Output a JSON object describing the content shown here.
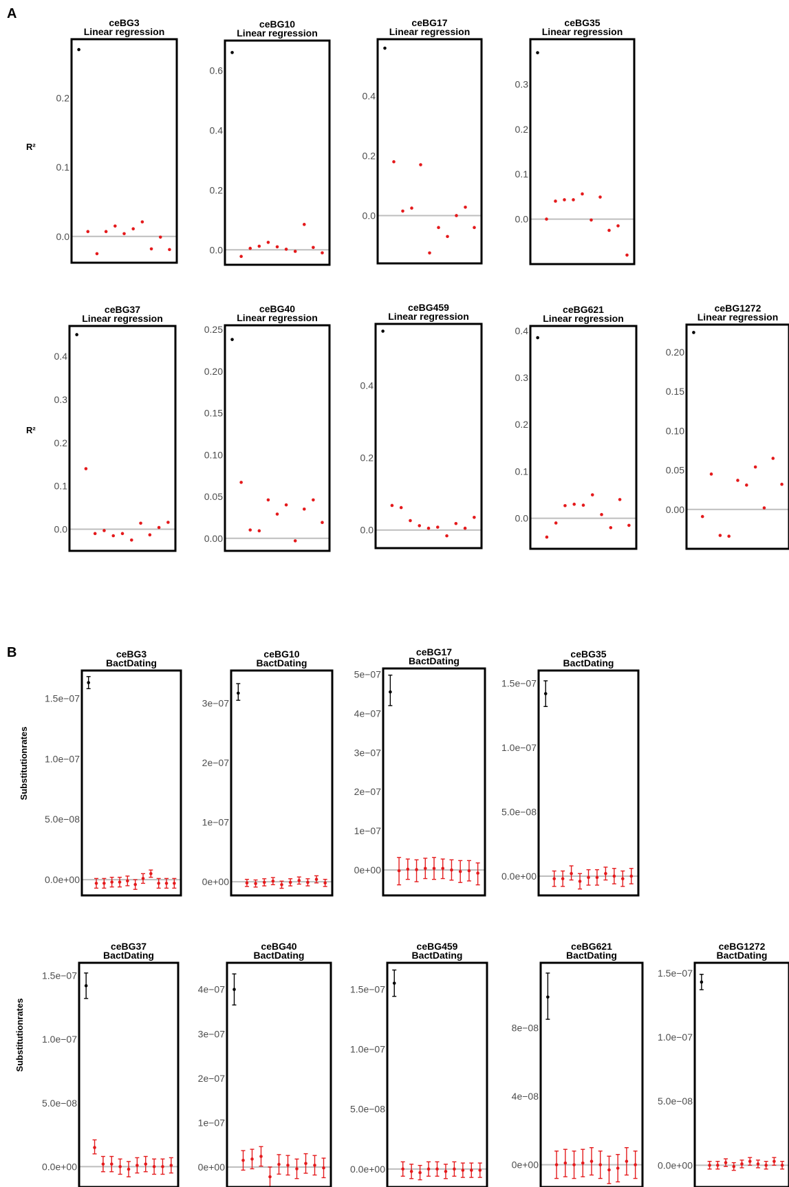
{
  "panel_labels": [
    "A",
    "B"
  ],
  "y_labels": {
    "a_row1": "R²",
    "a_row2": "R²",
    "b_row1": "Substitutionrates",
    "b_row2": "Substitutionrates"
  },
  "colors": {
    "reference": "#000000",
    "permuted": "#e41a1c",
    "zero_line": "#bdbdbd",
    "frame": "#000000",
    "tick_text": "#4d4d4d"
  },
  "chart_data": [
    {
      "type": "scatter",
      "panel": "A",
      "name": "ceBG3",
      "method": "Linear regression",
      "ylim": [
        -0.038,
        0.285
      ],
      "ticks": [
        0.0,
        0.1,
        0.2
      ],
      "tick_labels": [
        "0.0",
        "0.1",
        "0.2"
      ],
      "reference": 0.27,
      "values": [
        0.007,
        -0.025,
        0.007,
        0.015,
        0.004,
        0.011,
        0.021,
        -0.018,
        -0.001,
        -0.019
      ]
    },
    {
      "type": "scatter",
      "panel": "A",
      "name": "ceBG10",
      "method": "Linear regression",
      "ylim": [
        -0.05,
        0.7
      ],
      "ticks": [
        0.0,
        0.2,
        0.4,
        0.6
      ],
      "tick_labels": [
        "0.0",
        "0.2",
        "0.4",
        "0.6"
      ],
      "reference": 0.66,
      "values": [
        -0.022,
        0.005,
        0.012,
        0.025,
        0.01,
        0.002,
        -0.005,
        0.085,
        0.008,
        -0.01
      ]
    },
    {
      "type": "scatter",
      "panel": "A",
      "name": "ceBG17",
      "method": "Linear regression",
      "ylim": [
        -0.16,
        0.59
      ],
      "ticks": [
        0.0,
        0.2,
        0.4
      ],
      "tick_labels": [
        "0.0",
        "0.2",
        "0.4"
      ],
      "reference": 0.56,
      "values": [
        0.18,
        0.015,
        0.025,
        0.17,
        -0.125,
        -0.04,
        -0.07,
        0.0,
        0.028,
        -0.04
      ]
    },
    {
      "type": "scatter",
      "panel": "A",
      "name": "ceBG35",
      "method": "Linear regression",
      "ylim": [
        -0.1,
        0.4
      ],
      "ticks": [
        0.0,
        0.1,
        0.2,
        0.3
      ],
      "tick_labels": [
        "0.0",
        "0.1",
        "0.2",
        "0.3"
      ],
      "reference": 0.37,
      "values": [
        0.0,
        0.04,
        0.043,
        0.043,
        0.056,
        -0.002,
        0.049,
        -0.025,
        -0.015,
        -0.08
      ]
    },
    {
      "type": "scatter",
      "panel": "A",
      "name": "ceBG37",
      "method": "Linear regression",
      "ylim": [
        -0.05,
        0.47
      ],
      "ticks": [
        0.0,
        0.1,
        0.2,
        0.3,
        0.4
      ],
      "tick_labels": [
        "0.0",
        "0.1",
        "0.2",
        "0.3",
        "0.4"
      ],
      "reference": 0.45,
      "values": [
        0.14,
        -0.01,
        -0.003,
        -0.015,
        -0.01,
        -0.025,
        0.014,
        -0.013,
        0.004,
        0.016
      ]
    },
    {
      "type": "scatter",
      "panel": "A",
      "name": "ceBG40",
      "method": "Linear regression",
      "ylim": [
        -0.015,
        0.255
      ],
      "ticks": [
        0.0,
        0.05,
        0.1,
        0.15,
        0.2,
        0.25
      ],
      "tick_labels": [
        "0.00",
        "0.05",
        "0.10",
        "0.15",
        "0.20",
        "0.25"
      ],
      "reference": 0.238,
      "values": [
        0.067,
        0.01,
        0.009,
        0.046,
        0.029,
        0.04,
        -0.003,
        0.035,
        0.046,
        0.019
      ]
    },
    {
      "type": "scatter",
      "panel": "A",
      "name": "ceBG459",
      "method": "Linear regression",
      "ylim": [
        -0.05,
        0.57
      ],
      "ticks": [
        0.0,
        0.2,
        0.4
      ],
      "tick_labels": [
        "0.0",
        "0.2",
        "0.4"
      ],
      "reference": 0.55,
      "values": [
        0.068,
        0.062,
        0.026,
        0.012,
        0.005,
        0.008,
        -0.016,
        0.018,
        0.005,
        0.035
      ]
    },
    {
      "type": "scatter",
      "panel": "A",
      "name": "ceBG621",
      "method": "Linear regression",
      "ylim": [
        -0.065,
        0.41
      ],
      "ticks": [
        0.0,
        0.1,
        0.2,
        0.3,
        0.4
      ],
      "tick_labels": [
        "0.0",
        "0.1",
        "0.2",
        "0.3",
        "0.4"
      ],
      "reference": 0.385,
      "values": [
        -0.04,
        -0.01,
        0.027,
        0.03,
        0.028,
        0.05,
        0.008,
        -0.02,
        0.04,
        -0.015
      ]
    },
    {
      "type": "scatter",
      "panel": "A",
      "name": "ceBG1272",
      "method": "Linear regression",
      "ylim": [
        -0.05,
        0.235
      ],
      "ticks": [
        0.0,
        0.05,
        0.1,
        0.15,
        0.2
      ],
      "tick_labels": [
        "0.00",
        "0.05",
        "0.10",
        "0.15",
        "0.20"
      ],
      "reference": 0.225,
      "values": [
        -0.009,
        0.045,
        -0.033,
        -0.034,
        0.037,
        0.031,
        0.054,
        0.002,
        0.065,
        0.032
      ]
    },
    {
      "type": "errorbar",
      "panel": "B",
      "name": "ceBG3",
      "method": "BactDating",
      "ylim": [
        -1.3e-08,
        1.73e-07
      ],
      "ticks": [
        0,
        5e-08,
        1e-07,
        1.5e-07
      ],
      "tick_labels": [
        "0.0e+00",
        "5.0e−08",
        "1.0e−07",
        "1.5e−07"
      ],
      "reference": {
        "value": 1.63e-07,
        "lo": 1.58e-07,
        "hi": 1.68e-07
      },
      "values": [
        {
          "value": -3e-09,
          "lo": -7e-09,
          "hi": 1e-09
        },
        {
          "value": -3e-09,
          "lo": -7e-09,
          "hi": 1e-09
        },
        {
          "value": -2e-09,
          "lo": -6e-09,
          "hi": 2e-09
        },
        {
          "value": -2e-09,
          "lo": -6e-09,
          "hi": 2e-09
        },
        {
          "value": -1e-09,
          "lo": -5e-09,
          "hi": 3e-09
        },
        {
          "value": -4e-09,
          "lo": -8e-09,
          "hi": 0
        },
        {
          "value": 1e-09,
          "lo": -3e-09,
          "hi": 5e-09
        },
        {
          "value": 5e-09,
          "lo": 2e-09,
          "hi": 8e-09
        },
        {
          "value": -3e-09,
          "lo": -7e-09,
          "hi": 1e-09
        },
        {
          "value": -3e-09,
          "lo": -7e-09,
          "hi": 1e-09
        },
        {
          "value": -3e-09,
          "lo": -7e-09,
          "hi": 1e-09
        }
      ]
    },
    {
      "type": "errorbar",
      "panel": "B",
      "name": "ceBG10",
      "method": "BactDating",
      "ylim": [
        -2.3e-08,
        3.55e-07
      ],
      "ticks": [
        0,
        1e-07,
        2e-07,
        3e-07
      ],
      "tick_labels": [
        "0e+00",
        "1e−07",
        "2e−07",
        "3e−07"
      ],
      "reference": {
        "value": 3.17e-07,
        "lo": 3.05e-07,
        "hi": 3.33e-07
      },
      "values": [
        {
          "value": -2e-09,
          "lo": -8e-09,
          "hi": 4e-09
        },
        {
          "value": -3e-09,
          "lo": -9e-09,
          "hi": 3e-09
        },
        {
          "value": -1e-09,
          "lo": -7e-09,
          "hi": 5e-09
        },
        {
          "value": 1e-09,
          "lo": -5e-09,
          "hi": 7e-09
        },
        {
          "value": -5e-09,
          "lo": -1.1e-08,
          "hi": 1e-09
        },
        {
          "value": -1e-09,
          "lo": -7e-09,
          "hi": 5e-09
        },
        {
          "value": 2e-09,
          "lo": -4e-09,
          "hi": 8e-09
        },
        {
          "value": -1e-09,
          "lo": -7e-09,
          "hi": 5e-09
        },
        {
          "value": 4e-09,
          "lo": -2e-09,
          "hi": 1e-08
        },
        {
          "value": -2e-09,
          "lo": -8e-09,
          "hi": 4e-09
        }
      ]
    },
    {
      "type": "errorbar",
      "panel": "B",
      "name": "ceBG17",
      "method": "BactDating",
      "ylim": [
        -6.5e-08,
        5.15e-07
      ],
      "ticks": [
        0,
        1e-07,
        2e-07,
        3e-07,
        4e-07,
        5e-07
      ],
      "tick_labels": [
        "0e+00",
        "1e−07",
        "2e−07",
        "3e−07",
        "4e−07",
        "5e−07"
      ],
      "reference": {
        "value": 4.55e-07,
        "lo": 4.2e-07,
        "hi": 4.98e-07
      },
      "values": [
        {
          "value": -2e-09,
          "lo": -3.8e-08,
          "hi": 3.2e-08
        },
        {
          "value": 2e-09,
          "lo": -2.4e-08,
          "hi": 2.8e-08
        },
        {
          "value": 1e-09,
          "lo": -3e-08,
          "hi": 2.6e-08
        },
        {
          "value": 4e-09,
          "lo": -2.2e-08,
          "hi": 3e-08
        },
        {
          "value": 4e-09,
          "lo": -2.4e-08,
          "hi": 3.2e-08
        },
        {
          "value": 4e-09,
          "lo": -2.2e-08,
          "hi": 2.8e-08
        },
        {
          "value": 0,
          "lo": -2.6e-08,
          "hi": 2.6e-08
        },
        {
          "value": -4e-09,
          "lo": -3.2e-08,
          "hi": 2.4e-08
        },
        {
          "value": -2e-09,
          "lo": -2.8e-08,
          "hi": 2.4e-08
        },
        {
          "value": -8e-09,
          "lo": -3.8e-08,
          "hi": 1.8e-08
        }
      ]
    },
    {
      "type": "errorbar",
      "panel": "B",
      "name": "ceBG35",
      "method": "BactDating",
      "ylim": [
        -1.5e-08,
        1.6e-07
      ],
      "ticks": [
        0,
        5e-08,
        1e-07,
        1.5e-07
      ],
      "tick_labels": [
        "0.0e+00",
        "5.0e−08",
        "1.0e−07",
        "1.5e−07"
      ],
      "reference": {
        "value": 1.42e-07,
        "lo": 1.32e-07,
        "hi": 1.52e-07
      },
      "values": [
        {
          "value": -2e-09,
          "lo": -8e-09,
          "hi": 4e-09
        },
        {
          "value": -2e-09,
          "lo": -8e-09,
          "hi": 4e-09
        },
        {
          "value": 2e-09,
          "lo": -3e-09,
          "hi": 8e-09
        },
        {
          "value": -4e-09,
          "lo": -1e-08,
          "hi": 2e-09
        },
        {
          "value": -1e-09,
          "lo": -7e-09,
          "hi": 5e-09
        },
        {
          "value": -1e-09,
          "lo": -7e-09,
          "hi": 5e-09
        },
        {
          "value": 2e-09,
          "lo": -3e-09,
          "hi": 7e-09
        },
        {
          "value": 0,
          "lo": -6e-09,
          "hi": 6e-09
        },
        {
          "value": -2e-09,
          "lo": -8e-09,
          "hi": 4e-09
        },
        {
          "value": 0,
          "lo": -6e-09,
          "hi": 6e-09
        }
      ]
    },
    {
      "type": "errorbar",
      "panel": "B",
      "name": "ceBG37",
      "method": "BactDating",
      "ylim": [
        -1.6e-08,
        1.6e-07
      ],
      "ticks": [
        0,
        5e-08,
        1e-07,
        1.5e-07
      ],
      "tick_labels": [
        "0.0e+00",
        "5.0e−08",
        "1.0e−07",
        "1.5e−07"
      ],
      "reference": {
        "value": 1.42e-07,
        "lo": 1.32e-07,
        "hi": 1.52e-07
      },
      "values": [
        {
          "value": 1.5e-08,
          "lo": 1e-08,
          "hi": 2.1e-08
        },
        {
          "value": 2e-09,
          "lo": -4e-09,
          "hi": 8e-09
        },
        {
          "value": 2e-09,
          "lo": -4e-09,
          "hi": 8e-09
        },
        {
          "value": 0,
          "lo": -6e-09,
          "hi": 6e-09
        },
        {
          "value": -2e-09,
          "lo": -8e-09,
          "hi": 4e-09
        },
        {
          "value": 1e-09,
          "lo": -5e-09,
          "hi": 7e-09
        },
        {
          "value": 2e-09,
          "lo": -4e-09,
          "hi": 8e-09
        },
        {
          "value": 0,
          "lo": -6e-09,
          "hi": 6e-09
        },
        {
          "value": 0,
          "lo": -6e-09,
          "hi": 6e-09
        },
        {
          "value": 1e-09,
          "lo": -5e-09,
          "hi": 7e-09
        }
      ]
    },
    {
      "type": "errorbar",
      "panel": "B",
      "name": "ceBG40",
      "method": "BactDating",
      "ylim": [
        -4.5e-08,
        4.6e-07
      ],
      "ticks": [
        0,
        1e-07,
        2e-07,
        3e-07,
        4e-07
      ],
      "tick_labels": [
        "0e+00",
        "1e−07",
        "2e−07",
        "3e−07",
        "4e−07"
      ],
      "reference": {
        "value": 4e-07,
        "lo": 3.65e-07,
        "hi": 4.35e-07
      },
      "values": [
        {
          "value": 1.5e-08,
          "lo": -7e-09,
          "hi": 3.7e-08
        },
        {
          "value": 1.8e-08,
          "lo": -4e-09,
          "hi": 4e-08
        },
        {
          "value": 2.4e-08,
          "lo": 2e-09,
          "hi": 4.6e-08
        },
        {
          "value": -2.2e-08,
          "lo": -4.4e-08,
          "hi": 0
        },
        {
          "value": 6e-09,
          "lo": -1.6e-08,
          "hi": 2.8e-08
        },
        {
          "value": 4e-09,
          "lo": -1.8e-08,
          "hi": 2.6e-08
        },
        {
          "value": -4e-09,
          "lo": -2.6e-08,
          "hi": 1.8e-08
        },
        {
          "value": 8e-09,
          "lo": -1.4e-08,
          "hi": 3e-08
        },
        {
          "value": 4e-09,
          "lo": -1.8e-08,
          "hi": 2.6e-08
        },
        {
          "value": -2e-09,
          "lo": -2.4e-08,
          "hi": 2e-08
        }
      ]
    },
    {
      "type": "errorbar",
      "panel": "B",
      "name": "ceBG459",
      "method": "BactDating",
      "ylim": [
        -1.5e-08,
        1.72e-07
      ],
      "ticks": [
        0,
        5e-08,
        1e-07,
        1.5e-07
      ],
      "tick_labels": [
        "0.0e+00",
        "5.0e−08",
        "1.0e−07",
        "1.5e−07"
      ],
      "reference": {
        "value": 1.55e-07,
        "lo": 1.44e-07,
        "hi": 1.66e-07
      },
      "values": [
        {
          "value": 0,
          "lo": -6e-09,
          "hi": 6e-09
        },
        {
          "value": -2e-09,
          "lo": -8e-09,
          "hi": 4e-09
        },
        {
          "value": -3e-09,
          "lo": -9e-09,
          "hi": 3e-09
        },
        {
          "value": 0,
          "lo": -6e-09,
          "hi": 6e-09
        },
        {
          "value": 0,
          "lo": -6e-09,
          "hi": 6e-09
        },
        {
          "value": -2e-09,
          "lo": -8e-09,
          "hi": 4e-09
        },
        {
          "value": 0,
          "lo": -6e-09,
          "hi": 6e-09
        },
        {
          "value": -1e-09,
          "lo": -7e-09,
          "hi": 5e-09
        },
        {
          "value": -1e-09,
          "lo": -7e-09,
          "hi": 5e-09
        },
        {
          "value": -1e-09,
          "lo": -7e-09,
          "hi": 5e-09
        }
      ]
    },
    {
      "type": "errorbar",
      "panel": "B",
      "name": "ceBG621",
      "method": "BactDating",
      "ylim": [
        -1.3e-08,
        1.18e-07
      ],
      "ticks": [
        0,
        4e-08,
        8e-08
      ],
      "tick_labels": [
        "0e+00",
        "4e−08",
        "8e−08"
      ],
      "reference": {
        "value": 9.8e-08,
        "lo": 8.5e-08,
        "hi": 1.12e-07
      },
      "values": [
        {
          "value": 0,
          "lo": -8e-09,
          "hi": 8e-09
        },
        {
          "value": 1e-09,
          "lo": -7e-09,
          "hi": 9e-09
        },
        {
          "value": 0,
          "lo": -8e-09,
          "hi": 8e-09
        },
        {
          "value": 1e-09,
          "lo": -7e-09,
          "hi": 9e-09
        },
        {
          "value": 2e-09,
          "lo": -6e-09,
          "hi": 1e-08
        },
        {
          "value": 0,
          "lo": -8e-09,
          "hi": 8e-09
        },
        {
          "value": -3e-09,
          "lo": -1.1e-08,
          "hi": 5e-09
        },
        {
          "value": -2e-09,
          "lo": -1e-08,
          "hi": 6e-09
        },
        {
          "value": 2e-09,
          "lo": -6e-09,
          "hi": 1e-08
        },
        {
          "value": 0,
          "lo": -8e-09,
          "hi": 8e-09
        }
      ]
    },
    {
      "type": "errorbar",
      "panel": "B",
      "name": "ceBG1272",
      "method": "BactDating",
      "ylim": [
        -1.7e-08,
        1.58e-07
      ],
      "ticks": [
        0,
        5e-08,
        1e-07,
        1.5e-07
      ],
      "tick_labels": [
        "0.0e+00",
        "5.0e−08",
        "1.0e−07",
        "1.5e−07"
      ],
      "reference": {
        "value": 1.43e-07,
        "lo": 1.37e-07,
        "hi": 1.49e-07
      },
      "values": [
        {
          "value": 0,
          "lo": -3e-09,
          "hi": 3e-09
        },
        {
          "value": 0,
          "lo": -3e-09,
          "hi": 3e-09
        },
        {
          "value": 2e-09,
          "lo": -1e-09,
          "hi": 5e-09
        },
        {
          "value": -1e-09,
          "lo": -4e-09,
          "hi": 2e-09
        },
        {
          "value": 1e-09,
          "lo": -2e-09,
          "hi": 4e-09
        },
        {
          "value": 3e-09,
          "lo": 0,
          "hi": 6e-09
        },
        {
          "value": 1e-09,
          "lo": -2e-09,
          "hi": 4e-09
        },
        {
          "value": 0,
          "lo": -3e-09,
          "hi": 3e-09
        },
        {
          "value": 3e-09,
          "lo": 0,
          "hi": 6e-09
        },
        {
          "value": 0,
          "lo": -3e-09,
          "hi": 3e-09
        }
      ]
    }
  ]
}
